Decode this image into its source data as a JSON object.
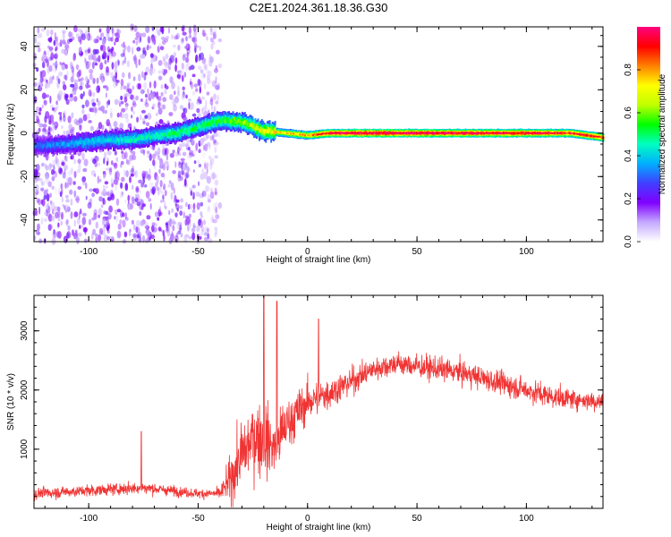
{
  "figure": {
    "title": "C2E1.2024.361.18.36.G30"
  },
  "chart_data": [
    {
      "type": "heatmap",
      "xlabel": "Height of straight line (km)",
      "ylabel": "Frequency (Hz)",
      "xlim": [
        -125,
        135
      ],
      "ylim": [
        -50,
        49
      ],
      "xticks": [
        -100,
        -50,
        0,
        50,
        100
      ],
      "yticks": [
        -40,
        -20,
        0,
        20,
        40
      ],
      "colorbar": {
        "label": "Normalized spectral amplitude",
        "range": [
          0,
          1
        ],
        "ticks": [
          0.0,
          0.2,
          0.4,
          0.6,
          0.8
        ],
        "colors": [
          "#ffffff",
          "#c4a8ff",
          "#8000ff",
          "#4040ff",
          "#00b0ff",
          "#00ffc0",
          "#00ff00",
          "#c0ff00",
          "#ffff00",
          "#ff8000",
          "#ff0000",
          "#ff0080"
        ]
      },
      "ridge": {
        "x": [
          -125,
          -110,
          -100,
          -90,
          -80,
          -70,
          -60,
          -50,
          -40,
          -30,
          -20,
          -10,
          0,
          10,
          20,
          50,
          100,
          120,
          135
        ],
        "freq_hz": [
          -6,
          -5,
          -4,
          -3,
          -3,
          -1,
          0,
          3,
          6,
          5,
          1,
          0,
          -1,
          0,
          0,
          0,
          0,
          0,
          -2
        ],
        "amplitude": [
          0.3,
          0.35,
          0.4,
          0.4,
          0.45,
          0.45,
          0.5,
          0.5,
          0.55,
          0.6,
          0.7,
          0.75,
          0.8,
          0.95,
          1.0,
          1.0,
          0.95,
          0.9,
          0.9
        ]
      },
      "noise_region": {
        "x_range": [
          -125,
          -40
        ],
        "amplitude": 0.12
      }
    },
    {
      "type": "line",
      "xlabel": "Height of straight line (km)",
      "ylabel": "SNR (10 * v/v)",
      "xlim": [
        -125,
        135
      ],
      "ylim": [
        0,
        3600
      ],
      "xticks": [
        -100,
        -50,
        0,
        50,
        100
      ],
      "yticks": [
        1000,
        2000,
        3000
      ],
      "color": "#f03434",
      "envelope": {
        "x": [
          -125,
          -100,
          -75,
          -50,
          -40,
          -35,
          -30,
          -25,
          -20,
          -15,
          -10,
          -5,
          0,
          10,
          20,
          30,
          40,
          50,
          60,
          70,
          80,
          90,
          100,
          110,
          120,
          135
        ],
        "mean": [
          250,
          300,
          350,
          250,
          250,
          500,
          900,
          1200,
          1200,
          1000,
          1400,
          1600,
          1800,
          1950,
          2150,
          2350,
          2450,
          2400,
          2350,
          2300,
          2200,
          2100,
          2000,
          1900,
          1850,
          1800
        ],
        "spread": [
          150,
          150,
          150,
          120,
          150,
          600,
          900,
          900,
          1000,
          800,
          700,
          600,
          500,
          400,
          350,
          300,
          300,
          300,
          300,
          300,
          300,
          300,
          300,
          300,
          250,
          250
        ]
      },
      "spikes": [
        {
          "x": -76,
          "y": 1300
        },
        {
          "x": -20,
          "y": 3600
        },
        {
          "x": -14,
          "y": 3500
        },
        {
          "x": 5,
          "y": 3200
        }
      ]
    }
  ]
}
